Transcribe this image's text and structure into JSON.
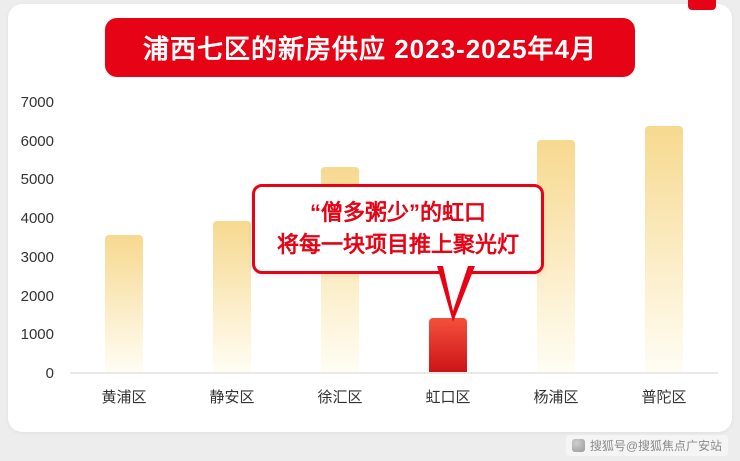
{
  "page": {
    "background": "#ededed",
    "watermark": "搜狐号@搜狐焦点广安站"
  },
  "banner": {
    "title": "浦西七区的新房供应 2023-2025年4月",
    "bg_color": "#e60315",
    "text_color": "#ffffff"
  },
  "callout": {
    "line1": "“僧多粥少”的虹口",
    "line2": "将每一块项目推上聚光灯",
    "color": "#e60315"
  },
  "chart_data": {
    "type": "bar",
    "title": "浦西七区的新房供应 2023-2025年4月",
    "categories": [
      "黄浦区",
      "静安区",
      "徐汇区",
      "虹口区",
      "杨浦区",
      "普陀区"
    ],
    "values": [
      3550,
      3900,
      5300,
      1400,
      6000,
      6350
    ],
    "highlight_index": 3,
    "highlighted_category": "虹口区",
    "annotation": "“僧多粥少”的虹口 将每一块项目推上聚光灯",
    "ylim": [
      0,
      7000
    ],
    "yticks": [
      0,
      1000,
      2000,
      3000,
      4000,
      5000,
      6000,
      7000
    ],
    "grid": false,
    "legend": false,
    "bar_gradient": [
      "#f7d98f",
      "#fffdf4"
    ],
    "highlight_gradient": [
      "#f4503c",
      "#cc1417"
    ]
  }
}
